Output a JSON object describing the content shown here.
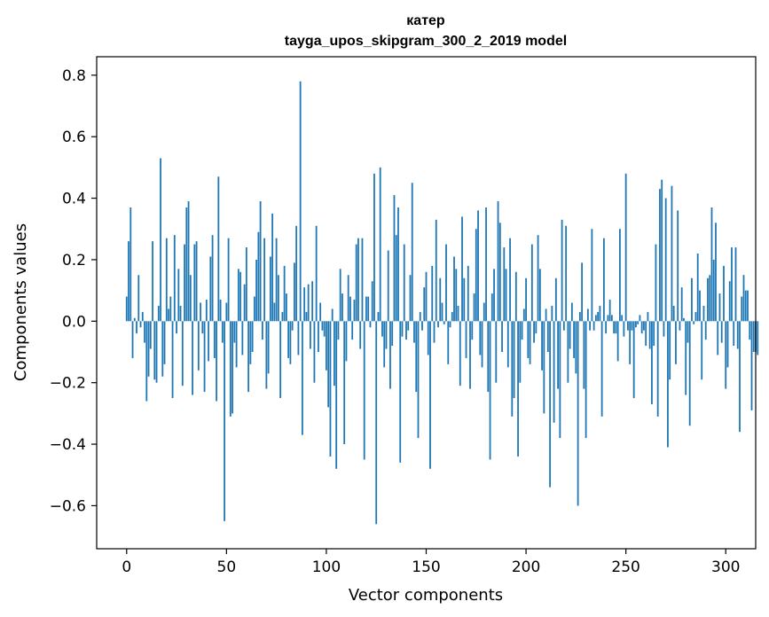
{
  "chart_data": {
    "type": "bar",
    "title_line1": "катер",
    "title_line2": "tayga_upos_skipgram_300_2_2019 model",
    "xlabel": "Vector components",
    "ylabel": "Components values",
    "xlim": [
      -15,
      315
    ],
    "ylim": [
      -0.74,
      0.86
    ],
    "xticks": [
      0,
      50,
      100,
      150,
      200,
      250,
      300
    ],
    "xtick_labels": [
      "0",
      "50",
      "100",
      "150",
      "200",
      "250",
      "300"
    ],
    "yticks": [
      -0.6,
      -0.4,
      -0.2,
      0.0,
      0.2,
      0.4,
      0.6,
      0.8
    ],
    "ytick_labels": [
      "−0.6",
      "−0.4",
      "−0.2",
      "0.0",
      "0.2",
      "0.4",
      "0.6",
      "0.8"
    ],
    "bar_color": "#1f77b4",
    "grid": false,
    "values": [
      0.08,
      0.26,
      0.37,
      -0.12,
      0.01,
      -0.04,
      0.15,
      -0.02,
      0.03,
      -0.07,
      -0.26,
      -0.18,
      -0.09,
      0.26,
      -0.19,
      -0.2,
      0.05,
      0.53,
      -0.18,
      -0.14,
      0.27,
      0.04,
      0.08,
      -0.25,
      0.28,
      -0.04,
      0.17,
      0.05,
      -0.21,
      0.25,
      0.37,
      0.39,
      0.15,
      -0.24,
      0.25,
      0.26,
      -0.16,
      0.06,
      -0.04,
      -0.23,
      0.07,
      -0.13,
      0.21,
      0.28,
      -0.12,
      -0.26,
      0.47,
      0.07,
      -0.07,
      -0.65,
      0.06,
      0.27,
      -0.31,
      -0.3,
      -0.07,
      -0.15,
      0.17,
      0.16,
      -0.11,
      0.12,
      0.24,
      -0.23,
      -0.14,
      -0.1,
      0.08,
      0.2,
      0.29,
      0.39,
      -0.06,
      0.27,
      -0.22,
      -0.17,
      0.21,
      0.35,
      0.06,
      0.27,
      0.15,
      -0.25,
      0.03,
      0.18,
      0.09,
      -0.12,
      -0.14,
      -0.03,
      0.19,
      0.31,
      -0.11,
      0.78,
      -0.37,
      0.11,
      0.03,
      0.12,
      -0.09,
      0.13,
      -0.2,
      0.31,
      -0.1,
      0.06,
      -0.03,
      -0.05,
      -0.16,
      -0.28,
      -0.44,
      0.04,
      -0.21,
      -0.48,
      -0.06,
      0.17,
      0.09,
      -0.4,
      -0.13,
      0.15,
      0.08,
      -0.06,
      0.07,
      0.25,
      0.27,
      -0.09,
      0.27,
      -0.45,
      0.08,
      0.08,
      -0.02,
      0.13,
      0.48,
      -0.66,
      0.03,
      0.5,
      -0.05,
      -0.15,
      -0.09,
      0.23,
      -0.22,
      -0.08,
      0.41,
      0.28,
      0.37,
      -0.46,
      -0.05,
      0.25,
      -0.06,
      -0.03,
      0.15,
      0.45,
      -0.07,
      -0.23,
      -0.38,
      0.03,
      -0.03,
      0.11,
      0.16,
      -0.11,
      -0.48,
      0.18,
      -0.07,
      0.33,
      -0.02,
      0.14,
      0.06,
      -0.01,
      0.25,
      -0.14,
      -0.02,
      0.03,
      0.21,
      0.17,
      0.05,
      -0.21,
      0.34,
      0.14,
      -0.12,
      0.18,
      -0.22,
      -0.06,
      0.09,
      0.3,
      0.36,
      -0.11,
      -0.15,
      0.06,
      0.37,
      -0.23,
      -0.45,
      0.09,
      0.17,
      -0.2,
      0.39,
      0.32,
      -0.1,
      0.24,
      0.17,
      -0.15,
      0.27,
      -0.31,
      -0.25,
      0.16,
      -0.44,
      -0.2,
      -0.06,
      0.04,
      0.14,
      -0.12,
      -0.14,
      0.25,
      -0.07,
      -0.04,
      0.28,
      0.17,
      -0.16,
      -0.3,
      0.04,
      -0.1,
      -0.54,
      0.05,
      -0.33,
      0.14,
      -0.22,
      -0.38,
      0.33,
      -0.03,
      0.31,
      -0.2,
      -0.09,
      0.06,
      -0.12,
      -0.17,
      -0.6,
      0.03,
      0.19,
      -0.22,
      -0.38,
      0.04,
      -0.03,
      0.3,
      -0.03,
      0.02,
      0.03,
      0.05,
      -0.31,
      0.27,
      -0.04,
      0.02,
      0.07,
      0.02,
      -0.04,
      -0.04,
      -0.13,
      0.3,
      0.02,
      -0.05,
      0.48,
      -0.03,
      -0.14,
      -0.03,
      -0.25,
      -0.02,
      -0.01,
      0.02,
      -0.04,
      -0.03,
      -0.08,
      0.03,
      -0.09,
      -0.27,
      -0.08,
      0.25,
      -0.31,
      0.43,
      0.46,
      -0.05,
      0.4,
      -0.41,
      -0.19,
      0.44,
      0.05,
      -0.14,
      0.36,
      -0.03,
      0.11,
      0.01,
      -0.24,
      -0.07,
      -0.34,
      0.14,
      -0.01,
      0.03,
      0.22,
      0.1,
      -0.19,
      0.05,
      -0.06,
      0.14,
      0.15,
      0.37,
      0.2,
      0.32,
      -0.11,
      0.09,
      -0.07,
      0.18,
      -0.22,
      -0.15,
      0.13,
      0.24,
      -0.08,
      0.24,
      -0.09,
      -0.36,
      0.08,
      0.15,
      0.1,
      0.1,
      -0.06,
      -0.29,
      -0.1,
      -0.1,
      -0.11
    ]
  }
}
